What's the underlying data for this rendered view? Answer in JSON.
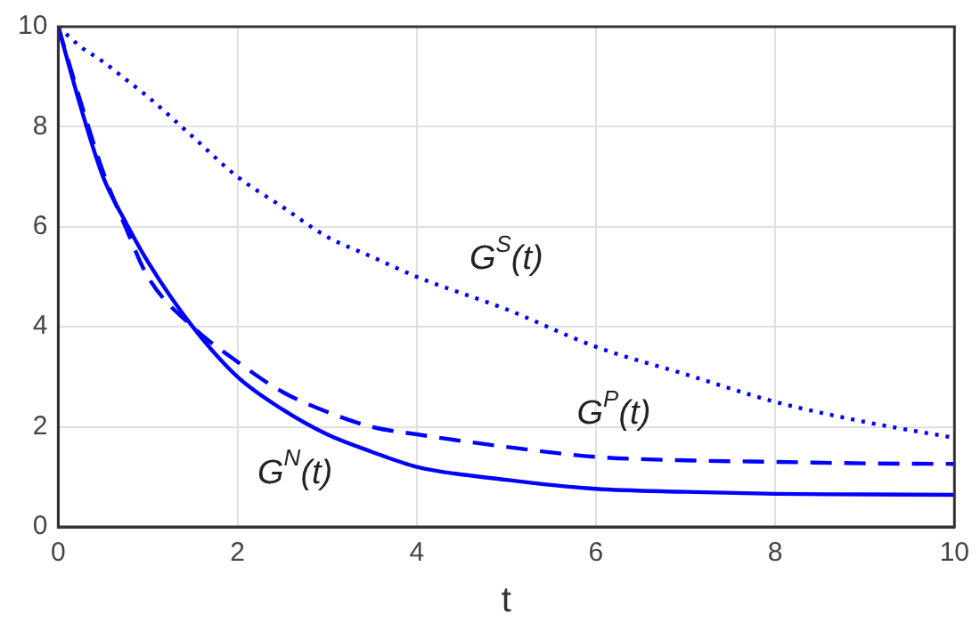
{
  "chart_data": {
    "type": "line",
    "xlabel": "t",
    "x": [
      0,
      0.25,
      0.5,
      0.75,
      1,
      1.5,
      2,
      2.5,
      3,
      3.5,
      4,
      5,
      6,
      7,
      8,
      9,
      10
    ],
    "series": [
      {
        "name": "G$^{S}$(t)",
        "color": "#0000ff",
        "line_style": "dotted",
        "values": [
          10,
          9.6,
          9.3,
          8.95,
          8.6,
          7.8,
          7.0,
          6.4,
          5.8,
          5.4,
          5.0,
          4.35,
          3.6,
          3.05,
          2.5,
          2.1,
          1.78
        ]
      },
      {
        "name": "G$^{P}$(t)",
        "color": "#0000ff",
        "line_style": "dashed",
        "values": [
          10,
          8.5,
          7.1,
          6.0,
          5.0,
          4.0,
          3.3,
          2.7,
          2.3,
          2.0,
          1.85,
          1.6,
          1.4,
          1.33,
          1.3,
          1.27,
          1.26
        ]
      },
      {
        "name": "G$^{N}$(t)",
        "color": "#0000ff",
        "line_style": "solid",
        "values": [
          10,
          8.4,
          7.0,
          6.1,
          5.3,
          4.0,
          3.0,
          2.35,
          1.85,
          1.5,
          1.2,
          0.94,
          0.76,
          0.7,
          0.66,
          0.65,
          0.64
        ]
      }
    ],
    "xlim": [
      0,
      10
    ],
    "ylim": [
      0,
      10
    ],
    "xticks": [
      0,
      2,
      4,
      6,
      8,
      10
    ],
    "yticks": [
      0,
      2,
      4,
      6,
      8,
      10
    ],
    "grid": true,
    "legend": false,
    "marker": "none"
  }
}
